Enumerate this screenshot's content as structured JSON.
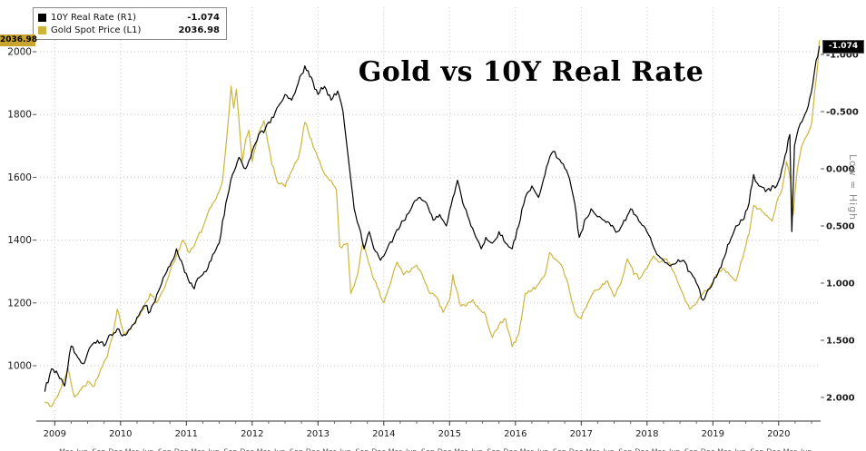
{
  "header": {
    "title": "Gold vs 10Y Real Rate"
  },
  "legend": {
    "items": [
      {
        "label": "10Y Real Rate (R1)",
        "value": "-1.074",
        "color": "#000000"
      },
      {
        "label": "Gold Spot Price (L1)",
        "value": "2036.98",
        "color": "#cdb53b"
      }
    ]
  },
  "badges": {
    "left_value": "2036.98",
    "right_value": "-1.074"
  },
  "right_axis_note": "Low = High",
  "axes": {
    "y_left": {
      "ticks": [
        2000,
        1800,
        1600,
        1400,
        1200,
        1000
      ]
    },
    "y_right": {
      "ticks": [
        "-1.000",
        "-0.500",
        "0.000",
        "0.500",
        "1.000",
        "1.500",
        "2.000"
      ]
    },
    "x": {
      "years": [
        2009,
        2010,
        2011,
        2012,
        2013,
        2014,
        2015,
        2016,
        2017,
        2018,
        2019,
        2020
      ],
      "minor_labels": [
        "Mar",
        "Jun",
        "Sep",
        "Dec"
      ]
    }
  },
  "colors": {
    "background": "#ffffff",
    "grid": "#c9c9c9",
    "axis_text": "#1a1a1a",
    "gold_series": "#cdb53b",
    "rate_series": "#000000",
    "note_text": "#8a8a8a"
  },
  "chart_data": {
    "type": "line",
    "title": "Gold vs 10Y Real Rate",
    "x_unit": "year",
    "x_range": [
      2008.85,
      2020.62
    ],
    "grid": "dotted",
    "legend_position": "top-left",
    "series": [
      {
        "name": "Gold Spot Price (L1)",
        "axis": "left",
        "color": "#cdb53b",
        "axis_range": [
          1000,
          2000
        ],
        "last_value": 2036.98,
        "points": [
          [
            2008.85,
            885
          ],
          [
            2008.95,
            870
          ],
          [
            2009.05,
            905
          ],
          [
            2009.15,
            960
          ],
          [
            2009.2,
            995
          ],
          [
            2009.3,
            900
          ],
          [
            2009.4,
            925
          ],
          [
            2009.5,
            950
          ],
          [
            2009.6,
            935
          ],
          [
            2009.7,
            990
          ],
          [
            2009.8,
            1030
          ],
          [
            2009.9,
            1120
          ],
          [
            2009.95,
            1180
          ],
          [
            2010.05,
            1100
          ],
          [
            2010.15,
            1115
          ],
          [
            2010.25,
            1150
          ],
          [
            2010.35,
            1180
          ],
          [
            2010.45,
            1230
          ],
          [
            2010.55,
            1200
          ],
          [
            2010.65,
            1240
          ],
          [
            2010.75,
            1300
          ],
          [
            2010.85,
            1350
          ],
          [
            2010.95,
            1400
          ],
          [
            2011.05,
            1360
          ],
          [
            2011.15,
            1400
          ],
          [
            2011.25,
            1440
          ],
          [
            2011.35,
            1500
          ],
          [
            2011.45,
            1530
          ],
          [
            2011.55,
            1590
          ],
          [
            2011.62,
            1740
          ],
          [
            2011.68,
            1890
          ],
          [
            2011.72,
            1820
          ],
          [
            2011.76,
            1880
          ],
          [
            2011.8,
            1780
          ],
          [
            2011.85,
            1650
          ],
          [
            2011.9,
            1720
          ],
          [
            2011.95,
            1750
          ],
          [
            2012.0,
            1650
          ],
          [
            2012.1,
            1740
          ],
          [
            2012.18,
            1780
          ],
          [
            2012.3,
            1640
          ],
          [
            2012.4,
            1580
          ],
          [
            2012.5,
            1570
          ],
          [
            2012.6,
            1620
          ],
          [
            2012.7,
            1660
          ],
          [
            2012.8,
            1775
          ],
          [
            2012.9,
            1720
          ],
          [
            2013.0,
            1660
          ],
          [
            2013.1,
            1610
          ],
          [
            2013.2,
            1590
          ],
          [
            2013.28,
            1560
          ],
          [
            2013.33,
            1380
          ],
          [
            2013.45,
            1390
          ],
          [
            2013.5,
            1230
          ],
          [
            2013.6,
            1290
          ],
          [
            2013.68,
            1390
          ],
          [
            2013.8,
            1310
          ],
          [
            2013.9,
            1250
          ],
          [
            2014.0,
            1200
          ],
          [
            2014.1,
            1260
          ],
          [
            2014.2,
            1330
          ],
          [
            2014.3,
            1290
          ],
          [
            2014.4,
            1300
          ],
          [
            2014.5,
            1320
          ],
          [
            2014.6,
            1280
          ],
          [
            2014.7,
            1230
          ],
          [
            2014.8,
            1220
          ],
          [
            2014.9,
            1170
          ],
          [
            2015.0,
            1210
          ],
          [
            2015.05,
            1290
          ],
          [
            2015.15,
            1200
          ],
          [
            2015.25,
            1190
          ],
          [
            2015.35,
            1210
          ],
          [
            2015.45,
            1180
          ],
          [
            2015.55,
            1160
          ],
          [
            2015.65,
            1090
          ],
          [
            2015.75,
            1130
          ],
          [
            2015.85,
            1150
          ],
          [
            2015.95,
            1060
          ],
          [
            2016.05,
            1100
          ],
          [
            2016.15,
            1230
          ],
          [
            2016.25,
            1240
          ],
          [
            2016.35,
            1260
          ],
          [
            2016.45,
            1290
          ],
          [
            2016.52,
            1360
          ],
          [
            2016.6,
            1340
          ],
          [
            2016.7,
            1320
          ],
          [
            2016.8,
            1260
          ],
          [
            2016.9,
            1170
          ],
          [
            2017.0,
            1150
          ],
          [
            2017.1,
            1200
          ],
          [
            2017.2,
            1240
          ],
          [
            2017.3,
            1250
          ],
          [
            2017.4,
            1270
          ],
          [
            2017.5,
            1220
          ],
          [
            2017.6,
            1260
          ],
          [
            2017.7,
            1340
          ],
          [
            2017.8,
            1290
          ],
          [
            2017.9,
            1280
          ],
          [
            2018.0,
            1310
          ],
          [
            2018.1,
            1350
          ],
          [
            2018.2,
            1330
          ],
          [
            2018.3,
            1340
          ],
          [
            2018.4,
            1300
          ],
          [
            2018.5,
            1250
          ],
          [
            2018.6,
            1200
          ],
          [
            2018.65,
            1180
          ],
          [
            2018.75,
            1200
          ],
          [
            2018.85,
            1230
          ],
          [
            2018.95,
            1250
          ],
          [
            2019.05,
            1290
          ],
          [
            2019.15,
            1310
          ],
          [
            2019.25,
            1290
          ],
          [
            2019.35,
            1270
          ],
          [
            2019.45,
            1340
          ],
          [
            2019.55,
            1420
          ],
          [
            2019.62,
            1510
          ],
          [
            2019.7,
            1500
          ],
          [
            2019.8,
            1480
          ],
          [
            2019.9,
            1460
          ],
          [
            2019.97,
            1520
          ],
          [
            2020.05,
            1560
          ],
          [
            2020.12,
            1650
          ],
          [
            2020.18,
            1590
          ],
          [
            2020.22,
            1480
          ],
          [
            2020.28,
            1620
          ],
          [
            2020.35,
            1700
          ],
          [
            2020.42,
            1730
          ],
          [
            2020.5,
            1770
          ],
          [
            2020.55,
            1880
          ],
          [
            2020.6,
            1975
          ],
          [
            2020.62,
            2036.98
          ]
        ]
      },
      {
        "name": "10Y Real Rate (R1)",
        "axis": "right",
        "color": "#000000",
        "axis_range_top_to_bottom": [
          -1.0,
          2.0
        ],
        "inverted_axis": true,
        "last_value": -1.074,
        "points": [
          [
            2008.85,
            1.95
          ],
          [
            2008.95,
            1.75
          ],
          [
            2009.05,
            1.8
          ],
          [
            2009.15,
            1.9
          ],
          [
            2009.25,
            1.55
          ],
          [
            2009.35,
            1.65
          ],
          [
            2009.45,
            1.7
          ],
          [
            2009.55,
            1.55
          ],
          [
            2009.65,
            1.5
          ],
          [
            2009.75,
            1.55
          ],
          [
            2009.85,
            1.45
          ],
          [
            2009.95,
            1.4
          ],
          [
            2010.05,
            1.45
          ],
          [
            2010.15,
            1.4
          ],
          [
            2010.25,
            1.3
          ],
          [
            2010.35,
            1.2
          ],
          [
            2010.45,
            1.25
          ],
          [
            2010.55,
            1.1
          ],
          [
            2010.65,
            0.95
          ],
          [
            2010.75,
            0.85
          ],
          [
            2010.85,
            0.7
          ],
          [
            2010.95,
            0.85
          ],
          [
            2011.05,
            1.0
          ],
          [
            2011.12,
            1.05
          ],
          [
            2011.2,
            0.95
          ],
          [
            2011.3,
            0.9
          ],
          [
            2011.4,
            0.75
          ],
          [
            2011.5,
            0.65
          ],
          [
            2011.6,
            0.3
          ],
          [
            2011.7,
            0.05
          ],
          [
            2011.8,
            -0.1
          ],
          [
            2011.9,
            0.0
          ],
          [
            2012.0,
            -0.15
          ],
          [
            2012.1,
            -0.3
          ],
          [
            2012.2,
            -0.35
          ],
          [
            2012.3,
            -0.45
          ],
          [
            2012.4,
            -0.55
          ],
          [
            2012.5,
            -0.65
          ],
          [
            2012.6,
            -0.6
          ],
          [
            2012.7,
            -0.75
          ],
          [
            2012.8,
            -0.9
          ],
          [
            2012.9,
            -0.8
          ],
          [
            2013.0,
            -0.65
          ],
          [
            2013.1,
            -0.72
          ],
          [
            2013.2,
            -0.6
          ],
          [
            2013.3,
            -0.68
          ],
          [
            2013.38,
            -0.5
          ],
          [
            2013.45,
            -0.15
          ],
          [
            2013.55,
            0.35
          ],
          [
            2013.62,
            0.5
          ],
          [
            2013.7,
            0.7
          ],
          [
            2013.78,
            0.55
          ],
          [
            2013.85,
            0.7
          ],
          [
            2013.95,
            0.8
          ],
          [
            2014.05,
            0.7
          ],
          [
            2014.15,
            0.6
          ],
          [
            2014.25,
            0.5
          ],
          [
            2014.35,
            0.4
          ],
          [
            2014.45,
            0.3
          ],
          [
            2014.55,
            0.25
          ],
          [
            2014.65,
            0.3
          ],
          [
            2014.75,
            0.45
          ],
          [
            2014.85,
            0.4
          ],
          [
            2014.95,
            0.5
          ],
          [
            2015.05,
            0.25
          ],
          [
            2015.12,
            0.1
          ],
          [
            2015.2,
            0.3
          ],
          [
            2015.3,
            0.45
          ],
          [
            2015.4,
            0.6
          ],
          [
            2015.48,
            0.7
          ],
          [
            2015.55,
            0.6
          ],
          [
            2015.65,
            0.65
          ],
          [
            2015.75,
            0.55
          ],
          [
            2015.85,
            0.65
          ],
          [
            2015.95,
            0.7
          ],
          [
            2016.05,
            0.5
          ],
          [
            2016.15,
            0.25
          ],
          [
            2016.25,
            0.15
          ],
          [
            2016.35,
            0.25
          ],
          [
            2016.45,
            0.05
          ],
          [
            2016.52,
            -0.1
          ],
          [
            2016.6,
            -0.15
          ],
          [
            2016.7,
            -0.05
          ],
          [
            2016.8,
            0.05
          ],
          [
            2016.9,
            0.3
          ],
          [
            2016.97,
            0.6
          ],
          [
            2017.05,
            0.45
          ],
          [
            2017.15,
            0.35
          ],
          [
            2017.25,
            0.42
          ],
          [
            2017.35,
            0.45
          ],
          [
            2017.45,
            0.5
          ],
          [
            2017.55,
            0.55
          ],
          [
            2017.65,
            0.45
          ],
          [
            2017.75,
            0.35
          ],
          [
            2017.85,
            0.42
          ],
          [
            2017.95,
            0.5
          ],
          [
            2018.05,
            0.6
          ],
          [
            2018.15,
            0.75
          ],
          [
            2018.25,
            0.8
          ],
          [
            2018.35,
            0.85
          ],
          [
            2018.45,
            0.82
          ],
          [
            2018.55,
            0.8
          ],
          [
            2018.65,
            0.9
          ],
          [
            2018.75,
            1.0
          ],
          [
            2018.85,
            1.15
          ],
          [
            2018.95,
            1.05
          ],
          [
            2019.05,
            0.95
          ],
          [
            2019.15,
            0.8
          ],
          [
            2019.25,
            0.65
          ],
          [
            2019.35,
            0.5
          ],
          [
            2019.45,
            0.45
          ],
          [
            2019.55,
            0.3
          ],
          [
            2019.62,
            0.05
          ],
          [
            2019.7,
            0.15
          ],
          [
            2019.8,
            0.2
          ],
          [
            2019.9,
            0.15
          ],
          [
            2019.97,
            0.15
          ],
          [
            2020.05,
            0.0
          ],
          [
            2020.12,
            -0.15
          ],
          [
            2020.17,
            -0.3
          ],
          [
            2020.2,
            0.55
          ],
          [
            2020.24,
            -0.2
          ],
          [
            2020.3,
            -0.35
          ],
          [
            2020.38,
            -0.45
          ],
          [
            2020.45,
            -0.55
          ],
          [
            2020.52,
            -0.75
          ],
          [
            2020.57,
            -0.95
          ],
          [
            2020.62,
            -1.074
          ]
        ]
      }
    ]
  }
}
